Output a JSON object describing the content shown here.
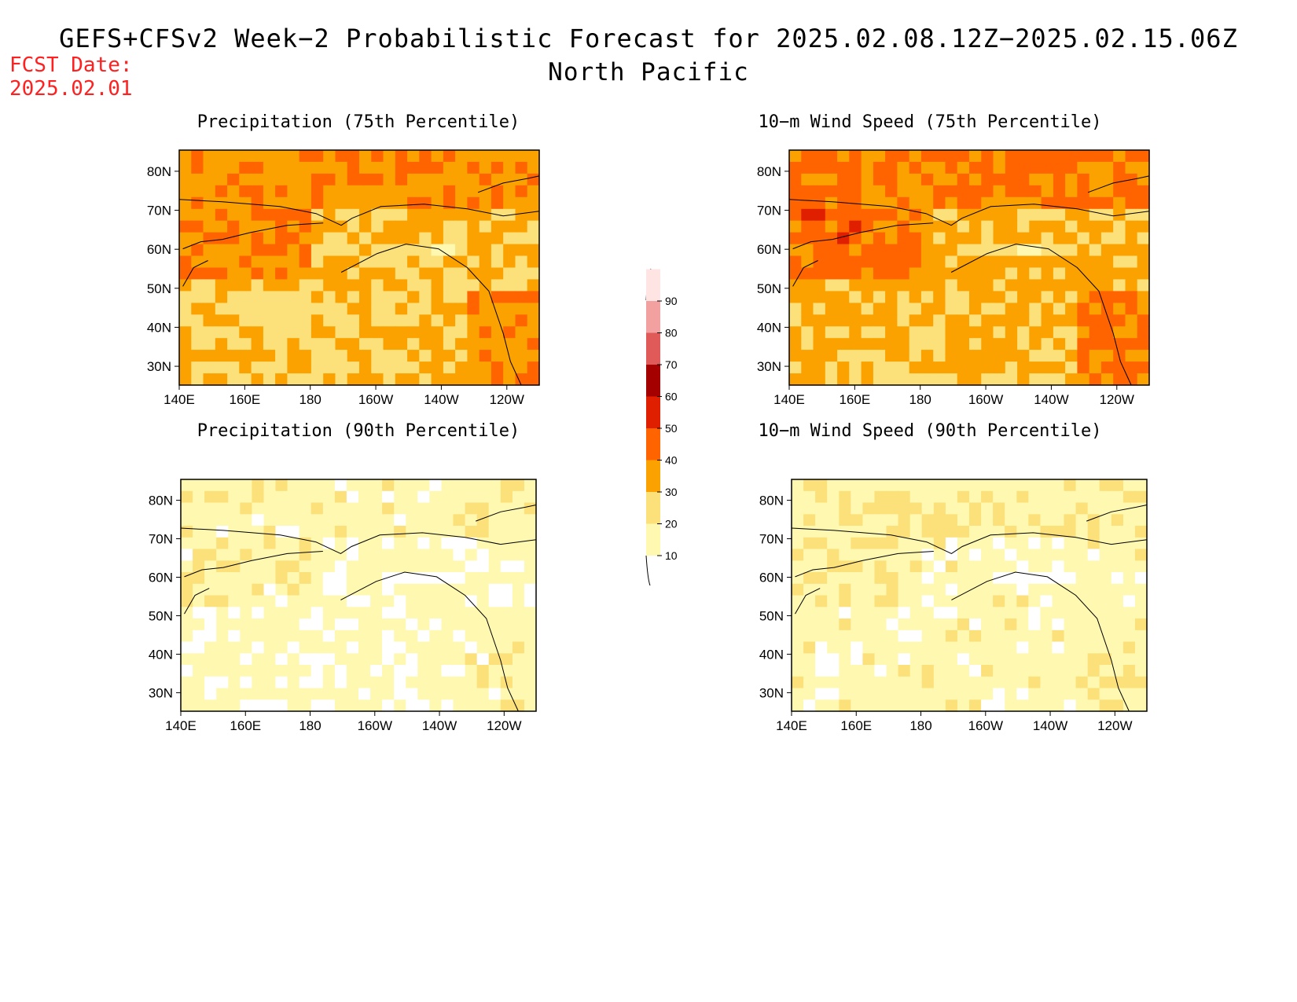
{
  "header": {
    "title": "GEFS+CFSv2 Week−2 Probabilistic Forecast for 2025.02.08.12Z−2025.02.15.06Z",
    "region": "North Pacific",
    "fcst_label": "FCST Date:",
    "fcst_date": "2025.02.01"
  },
  "panels": [
    {
      "title": "Precipitation (75th Percentile)",
      "level": 0.75
    },
    {
      "title": "10−m Wind Speed (75th Percentile)",
      "level": 0.85
    },
    {
      "title": "Precipitation (90th Percentile)",
      "level": 0.25
    },
    {
      "title": "10−m Wind Speed (90th Percentile)",
      "level": 0.3
    }
  ],
  "axes": {
    "lat_ticks": [
      "80N",
      "70N",
      "60N",
      "50N",
      "40N",
      "30N"
    ],
    "lon_ticks": [
      "140E",
      "160E",
      "180",
      "160W",
      "140W",
      "120W"
    ]
  },
  "colorbar": {
    "levels": [
      "10",
      "20",
      "30",
      "40",
      "50",
      "60",
      "70",
      "80",
      "90"
    ],
    "colors": [
      "#fff8b0",
      "#fce07a",
      "#fba200",
      "#ff6400",
      "#e01e00",
      "#a50000",
      "#e05a5a",
      "#f2a0a0",
      "#ffe4e4"
    ]
  }
}
